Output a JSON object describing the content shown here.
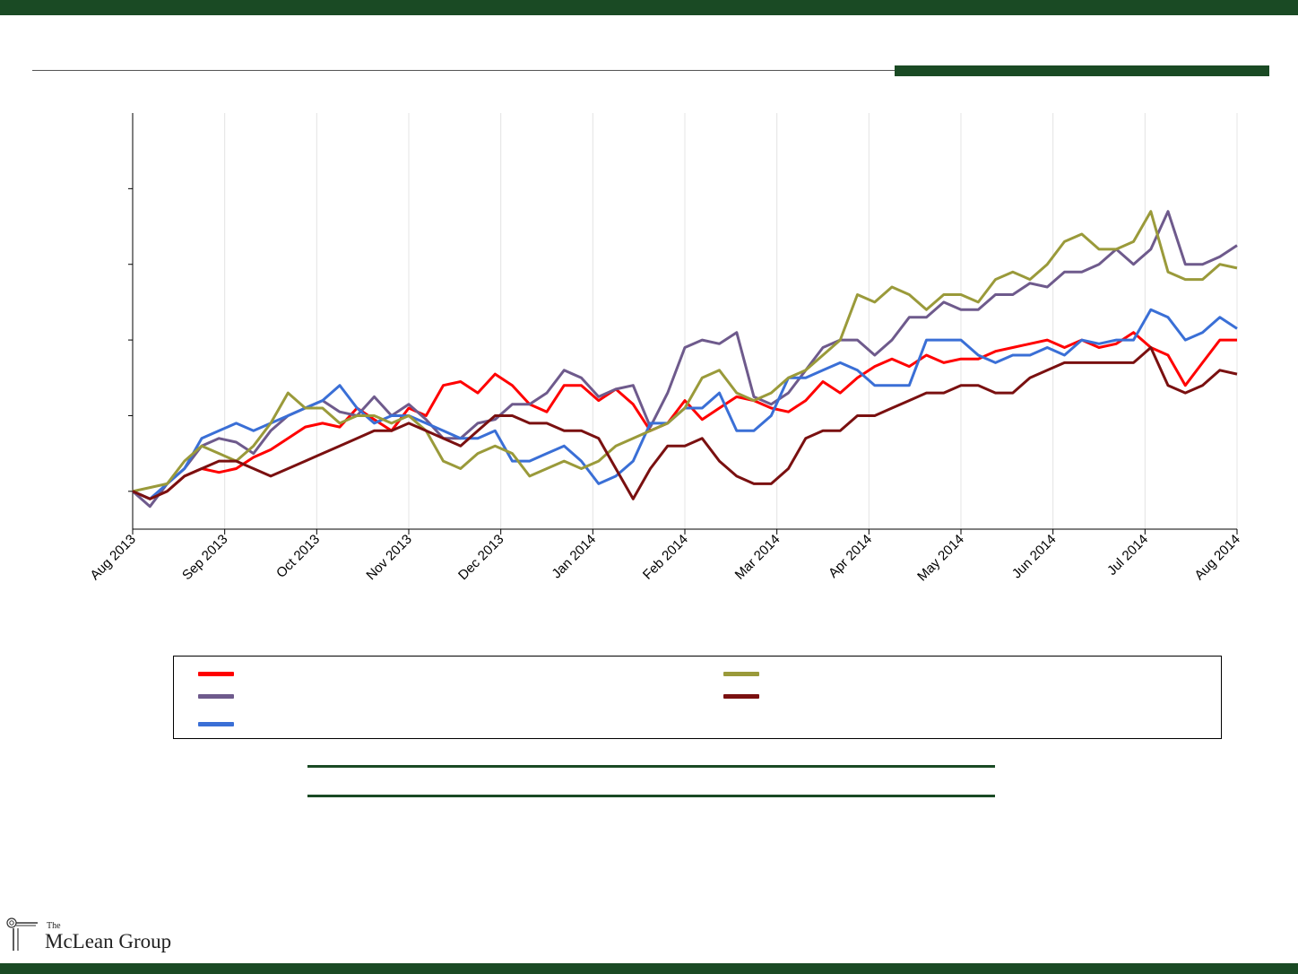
{
  "colors": {
    "brand_green": "#1a4a24"
  },
  "logo": {
    "the": "The",
    "name": "McLean Group",
    "icon": "column-scroll-icon"
  },
  "chart_data": {
    "type": "line",
    "title": "",
    "xlabel": "",
    "ylabel": "",
    "x_ticks": [
      "Aug 2013",
      "Sep 2013",
      "Oct 2013",
      "Nov 2013",
      "Dec 2013",
      "Jan 2014",
      "Feb 2014",
      "Mar 2014",
      "Apr 2014",
      "May 2014",
      "Jun 2014",
      "Jul 2014",
      "Aug 2014"
    ],
    "ylim": [
      -0.05,
      0.5
    ],
    "y_ticks": [
      0,
      0.1,
      0.2,
      0.3,
      0.4
    ],
    "y_tick_labels_visible": false,
    "grid": {
      "vertical": true,
      "horizontal": false
    },
    "legend": {
      "placement": "bottom",
      "columns": 2
    },
    "series": [
      {
        "color": "#ff0000",
        "values": [
          0.0,
          -0.01,
          0.0,
          0.02,
          0.03,
          0.025,
          0.03,
          0.045,
          0.055,
          0.07,
          0.085,
          0.09,
          0.085,
          0.11,
          0.095,
          0.08,
          0.11,
          0.1,
          0.14,
          0.145,
          0.13,
          0.155,
          0.14,
          0.115,
          0.105,
          0.14,
          0.14,
          0.12,
          0.135,
          0.115,
          0.08,
          0.09,
          0.12,
          0.095,
          0.11,
          0.125,
          0.12,
          0.11,
          0.105,
          0.12,
          0.145,
          0.13,
          0.15,
          0.165,
          0.175,
          0.165,
          0.18,
          0.17,
          0.175,
          0.175,
          0.185,
          0.19,
          0.195,
          0.2,
          0.19,
          0.2,
          0.19,
          0.195,
          0.21,
          0.19,
          0.18,
          0.14,
          0.17,
          0.2,
          0.2
        ]
      },
      {
        "color": "#6e5a8c",
        "values": [
          0.0,
          -0.02,
          0.01,
          0.03,
          0.06,
          0.07,
          0.065,
          0.05,
          0.08,
          0.1,
          0.11,
          0.12,
          0.105,
          0.1,
          0.125,
          0.1,
          0.115,
          0.095,
          0.07,
          0.07,
          0.09,
          0.095,
          0.115,
          0.115,
          0.13,
          0.16,
          0.15,
          0.125,
          0.135,
          0.14,
          0.085,
          0.13,
          0.19,
          0.2,
          0.195,
          0.21,
          0.125,
          0.115,
          0.13,
          0.16,
          0.19,
          0.2,
          0.2,
          0.18,
          0.2,
          0.23,
          0.23,
          0.25,
          0.24,
          0.24,
          0.26,
          0.26,
          0.275,
          0.27,
          0.29,
          0.29,
          0.3,
          0.32,
          0.3,
          0.32,
          0.37,
          0.3,
          0.3,
          0.31,
          0.325
        ]
      },
      {
        "color": "#3a6fd6",
        "values": [
          0.0,
          -0.01,
          0.01,
          0.03,
          0.07,
          0.08,
          0.09,
          0.08,
          0.09,
          0.1,
          0.11,
          0.12,
          0.14,
          0.11,
          0.09,
          0.1,
          0.1,
          0.09,
          0.08,
          0.07,
          0.07,
          0.08,
          0.04,
          0.04,
          0.05,
          0.06,
          0.04,
          0.01,
          0.02,
          0.04,
          0.09,
          0.09,
          0.11,
          0.11,
          0.13,
          0.08,
          0.08,
          0.1,
          0.15,
          0.15,
          0.16,
          0.17,
          0.16,
          0.14,
          0.14,
          0.14,
          0.2,
          0.2,
          0.2,
          0.18,
          0.17,
          0.18,
          0.18,
          0.19,
          0.18,
          0.2,
          0.195,
          0.2,
          0.2,
          0.24,
          0.23,
          0.2,
          0.21,
          0.23,
          0.215
        ]
      },
      {
        "color": "#9a9a3a",
        "values": [
          0.0,
          0.005,
          0.01,
          0.04,
          0.06,
          0.05,
          0.04,
          0.06,
          0.09,
          0.13,
          0.11,
          0.11,
          0.09,
          0.1,
          0.1,
          0.09,
          0.1,
          0.08,
          0.04,
          0.03,
          0.05,
          0.06,
          0.05,
          0.02,
          0.03,
          0.04,
          0.03,
          0.04,
          0.06,
          0.07,
          0.08,
          0.09,
          0.11,
          0.15,
          0.16,
          0.13,
          0.12,
          0.13,
          0.15,
          0.16,
          0.18,
          0.2,
          0.26,
          0.25,
          0.27,
          0.26,
          0.24,
          0.26,
          0.26,
          0.25,
          0.28,
          0.29,
          0.28,
          0.3,
          0.33,
          0.34,
          0.32,
          0.32,
          0.33,
          0.37,
          0.29,
          0.28,
          0.28,
          0.3,
          0.295
        ]
      },
      {
        "color": "#7a1010",
        "values": [
          0.0,
          -0.01,
          0.0,
          0.02,
          0.03,
          0.04,
          0.04,
          0.03,
          0.02,
          0.03,
          0.04,
          0.05,
          0.06,
          0.07,
          0.08,
          0.08,
          0.09,
          0.08,
          0.07,
          0.06,
          0.08,
          0.1,
          0.1,
          0.09,
          0.09,
          0.08,
          0.08,
          0.07,
          0.03,
          -0.01,
          0.03,
          0.06,
          0.06,
          0.07,
          0.04,
          0.02,
          0.01,
          0.01,
          0.03,
          0.07,
          0.08,
          0.08,
          0.1,
          0.1,
          0.11,
          0.12,
          0.13,
          0.13,
          0.14,
          0.14,
          0.13,
          0.13,
          0.15,
          0.16,
          0.17,
          0.17,
          0.17,
          0.17,
          0.17,
          0.19,
          0.14,
          0.13,
          0.14,
          0.16,
          0.155
        ]
      }
    ]
  }
}
